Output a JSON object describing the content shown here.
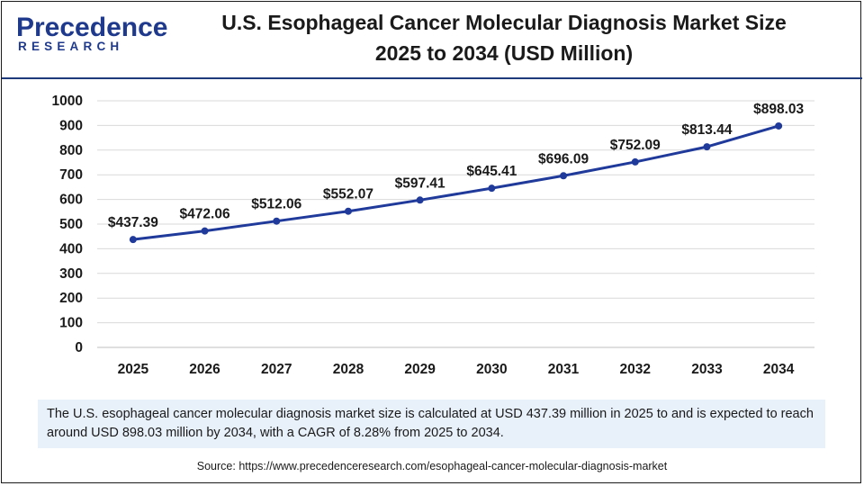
{
  "brand": {
    "name": "Precedence",
    "subtitle": "RESEARCH",
    "colors": {
      "primary": "#1f3a8c",
      "accent": "#1f3a7a"
    }
  },
  "header": {
    "title_line1": "U.S. Esophageal Cancer Molecular Diagnosis Market Size",
    "title_line2": "2025 to 2034 (USD Million)"
  },
  "chart_data": {
    "type": "line",
    "title": "U.S. Esophageal Cancer Molecular Diagnosis Market Size 2025 to 2034 (USD Million)",
    "xlabel": "",
    "ylabel": "",
    "categories": [
      "2025",
      "2026",
      "2027",
      "2028",
      "2029",
      "2030",
      "2031",
      "2032",
      "2033",
      "2034"
    ],
    "series": [
      {
        "name": "Market Size (USD Million)",
        "values": [
          437.39,
          472.06,
          512.06,
          552.07,
          597.41,
          645.41,
          696.09,
          752.09,
          813.44,
          898.03
        ],
        "labels": [
          "$437.39",
          "$472.06",
          "$512.06",
          "$552.07",
          "$597.41",
          "$645.41",
          "$696.09",
          "$752.09",
          "$813.44",
          "$898.03"
        ],
        "color": "#1f3a9a"
      }
    ],
    "ylim": [
      0,
      1000
    ],
    "yticks": [
      0,
      100,
      200,
      300,
      400,
      500,
      600,
      700,
      800,
      900,
      1000
    ],
    "grid": true,
    "legend": "none"
  },
  "note": {
    "text": "The U.S. esophageal cancer molecular diagnosis market size is calculated at USD 437.39 million in 2025 to and is expected to reach around USD 898.03 million by 2034, with a CAGR of 8.28% from 2025 to 2034."
  },
  "source": {
    "text": "Source: https://www.precedenceresearch.com/esophageal-cancer-molecular-diagnosis-market"
  }
}
